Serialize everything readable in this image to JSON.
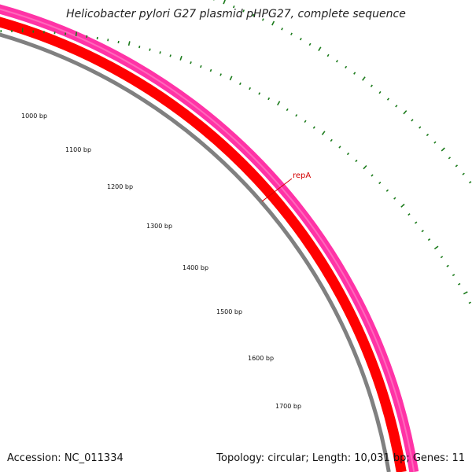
{
  "title": "Helicobacter pylori G27 plasmid pHPG27, complete sequence",
  "accession": "Accession: NC_011334",
  "summary": "Topology: circular; Length: 10,031 bp; Genes: 11",
  "tick_labels": [
    "1000 bp",
    "1100 bp",
    "1200 bp",
    "1300 bp",
    "1400 bp",
    "1500 bp",
    "1600 bp",
    "1700 bp"
  ],
  "gene_label": "repA",
  "colors": {
    "backbone": "#808080",
    "cds": "#ff0000",
    "gene": "#ff2aa0",
    "ticks": "#1a7a1a",
    "label": "#d40000"
  }
}
